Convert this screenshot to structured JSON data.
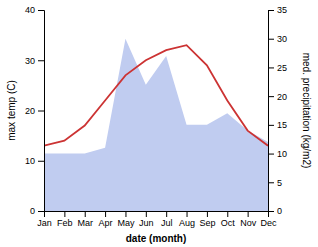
{
  "chart_data": {
    "type": "line",
    "categories": [
      "Jan",
      "Feb",
      "Mar",
      "Apr",
      "May",
      "Jun",
      "Jul",
      "Aug",
      "Sep",
      "Oct",
      "Nov",
      "Dec"
    ],
    "series": [
      {
        "type": "area",
        "axis": "y2",
        "color": "#c0ccf0",
        "values": [
          10,
          10,
          10,
          11,
          30,
          22,
          27,
          15,
          15,
          17,
          14,
          12
        ]
      },
      {
        "type": "line",
        "color": "#cc3333",
        "values": [
          13,
          14,
          17,
          22,
          27,
          30,
          32,
          33,
          29,
          22,
          16,
          13
        ]
      }
    ],
    "xlabel": "date (month)",
    "ylabel": "max temp (C)",
    "y2label": "med. precipitation (kg/m2)",
    "ylim": [
      0,
      40
    ],
    "yticks": [
      0,
      10,
      20,
      30,
      40
    ],
    "y2lim": [
      0,
      35
    ],
    "y2ticks": [
      0,
      5,
      10,
      15,
      20,
      25,
      30,
      35
    ],
    "grid": false
  }
}
